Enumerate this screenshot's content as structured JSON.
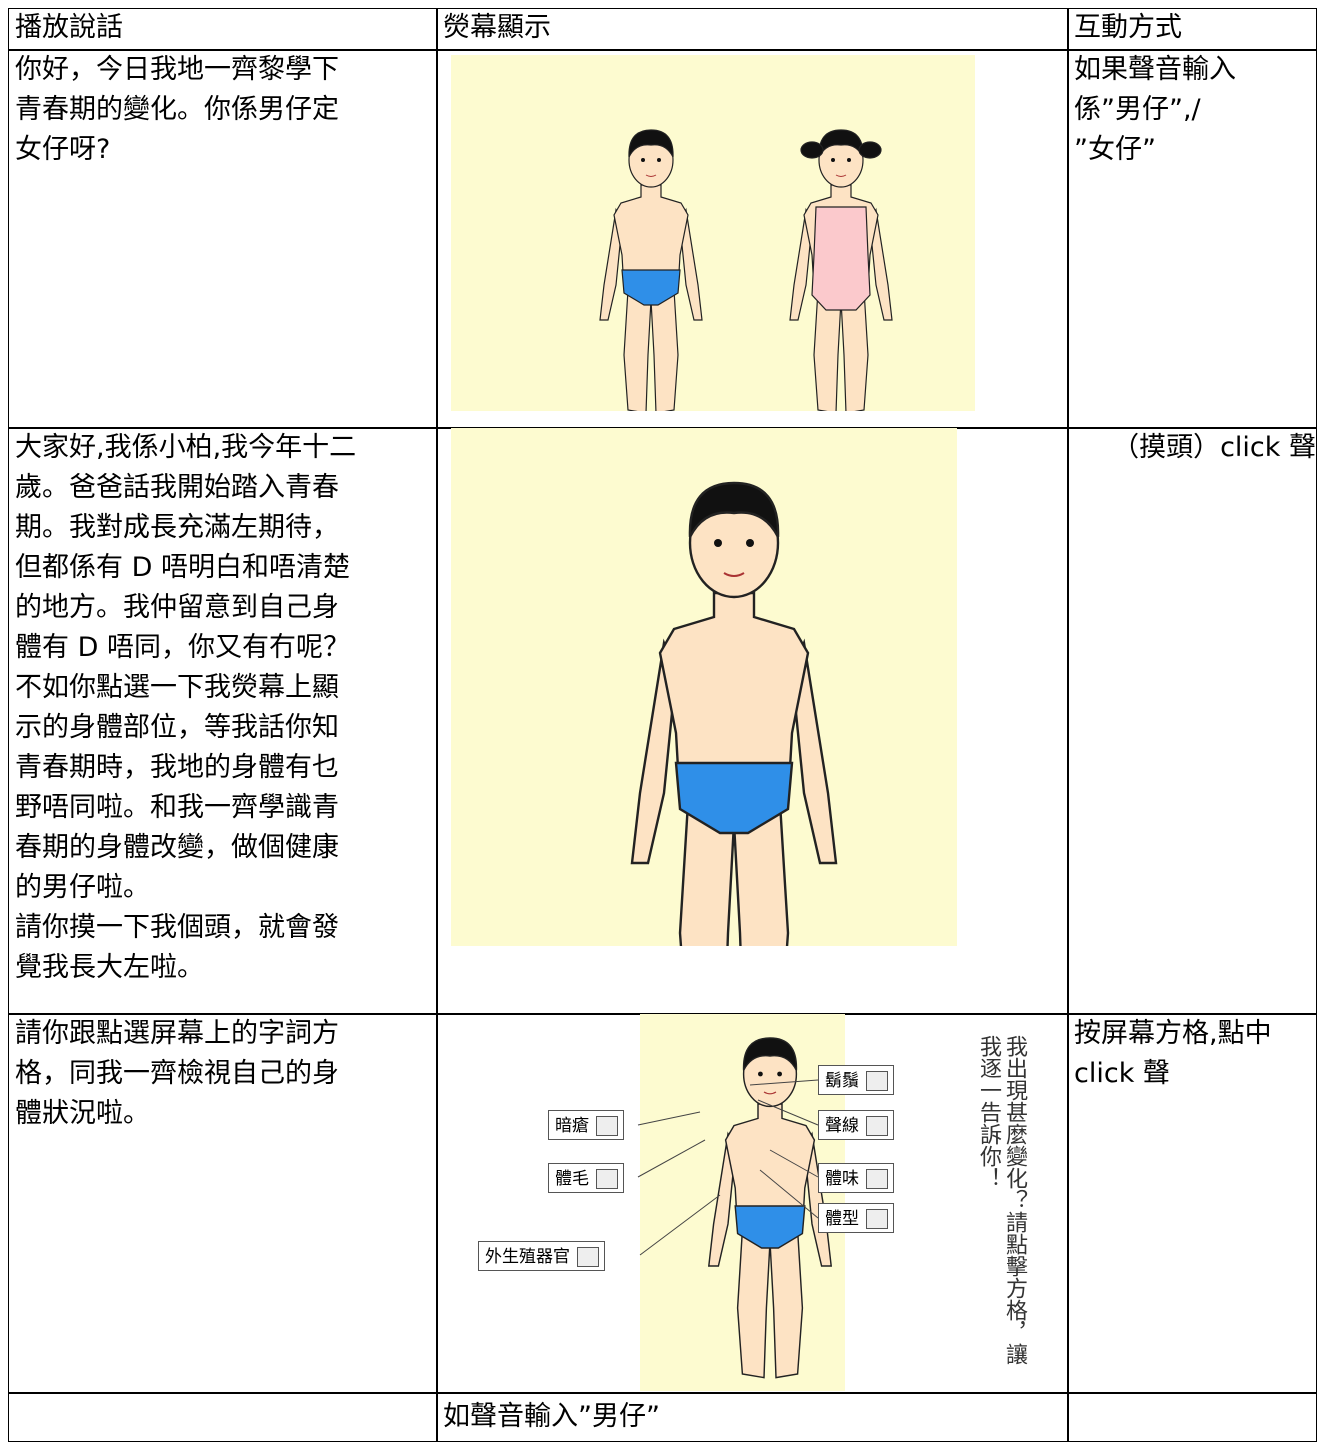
{
  "table": {
    "header": [
      "播放說話",
      "熒幕顯示",
      "互動方式"
    ],
    "rows": [
      {
        "speech": [
          "你好，今日我地一齊黎學下",
          "青春期的變化。你係男仔定",
          "女仔呀?"
        ],
        "interaction": [
          "如果聲音輸入",
          "係”男仔”,/",
          "”女仔”"
        ]
      },
      {
        "speech": [
          "大家好,我係小柏,我今年十二",
          "歲。爸爸話我開始踏入青春",
          "期。我對成長充滿左期待，",
          "但都係有 D 唔明白和唔清楚",
          "的地方。我仲留意到自己身",
          "體有 D 唔同，你又有冇呢？",
          "不如你點選一下我熒幕上顯",
          "示的身體部位，等我話你知",
          "青春期時，我地的身體有乜",
          "野唔同啦。和我一齊學識青",
          "春期的身體改變，做個健康",
          "的男仔啦。",
          "請你摸一下我個頭，就會發",
          "覺我長大左啦。"
        ],
        "interaction": [
          "（摸頭）click 聲"
        ]
      },
      {
        "speech": [
          "請你跟點選屏幕上的字詞方",
          "格，同我一齊檢視自己的身",
          "體狀況啦。"
        ],
        "interaction": [
          "按屏幕方格,點中",
          "click 聲"
        ],
        "screen": {
          "labels": [
            "暗瘡",
            "體毛",
            "外生殖器官",
            "鬍鬚",
            "聲線",
            "體味",
            "體型"
          ],
          "prompt": "我出現甚麼變化？請點擊方格，讓我逐一告訴你！"
        }
      },
      {
        "screen_text": "如聲音輸入”男仔”"
      }
    ]
  }
}
